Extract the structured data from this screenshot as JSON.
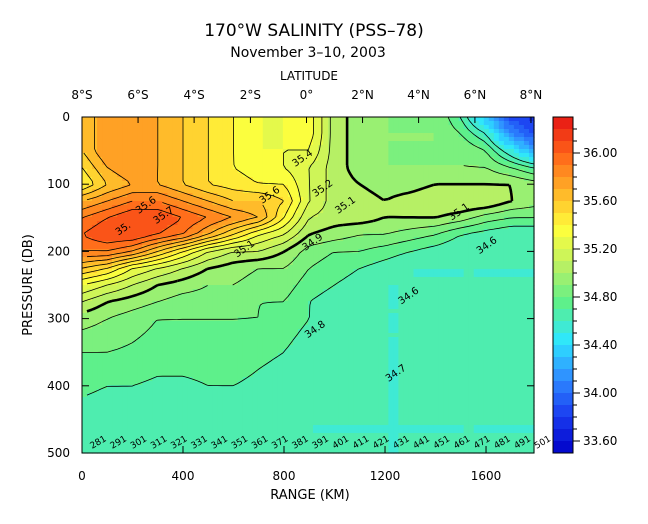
{
  "chart_data": {
    "type": "heatmap",
    "title": "170°W SALINITY (PSS–78)",
    "subtitle": "November 3–10, 2003",
    "top_axis_label": "LATITUDE",
    "xlabel": "RANGE (KM)",
    "ylabel": "PRESSURE (DB)",
    "xlim": [
      0,
      1790
    ],
    "ylim": [
      0,
      500
    ],
    "latitude_ticks": [
      {
        "label": "8°S",
        "km": 0
      },
      {
        "label": "6°S",
        "km": 222
      },
      {
        "label": "4°S",
        "km": 444
      },
      {
        "label": "2°S",
        "km": 667
      },
      {
        "label": "0°",
        "km": 889
      },
      {
        "label": "2°N",
        "km": 1111
      },
      {
        "label": "4°N",
        "km": 1333
      },
      {
        "label": "6°N",
        "km": 1556
      },
      {
        "label": "8°N",
        "km": 1778
      }
    ],
    "range_ticks": [
      "0",
      "400",
      "800",
      "1200",
      "1600"
    ],
    "range_tick_values": [
      0,
      400,
      800,
      1200,
      1600
    ],
    "pressure_ticks": [
      "0",
      "100",
      "200",
      "300",
      "400",
      "500"
    ],
    "pressure_tick_values": [
      0,
      100,
      200,
      300,
      400,
      500
    ],
    "colorbar": {
      "min": 33.5,
      "max": 36.3,
      "step": 0.1,
      "labels": [
        "36.00",
        "35.60",
        "35.20",
        "34.80",
        "34.40",
        "34.00",
        "33.60"
      ],
      "label_values": [
        36.0,
        35.6,
        35.2,
        34.8,
        34.4,
        34.0,
        33.6
      ],
      "colors": [
        "#0000c8",
        "#1a3cf0",
        "#2f8cff",
        "#2ee6ff",
        "#5cf08c",
        "#b8f064",
        "#ffff3c",
        "#ffb428",
        "#ff6419",
        "#e61414"
      ]
    },
    "contour_labels": [
      "35.4",
      "35.2",
      "35.1",
      "35.1",
      "35.6",
      "35.6",
      "35.7",
      "35.",
      "35.1",
      "34.9",
      "34.6",
      "34.6",
      "34.8",
      "34.7"
    ],
    "stations": [
      "281",
      "291",
      "301",
      "311",
      "321",
      "331",
      "341",
      "351",
      "361",
      "371",
      "381",
      "391",
      "401",
      "411",
      "421",
      "431",
      "441",
      "451",
      "461",
      "471",
      "481",
      "491",
      "501"
    ],
    "field": {
      "km": [
        0,
        100,
        200,
        300,
        400,
        500,
        600,
        700,
        800,
        900,
        1000,
        1100,
        1200,
        1300,
        1400,
        1500,
        1600,
        1700,
        1790
      ],
      "pressure": [
        0,
        25,
        50,
        75,
        100,
        125,
        150,
        175,
        200,
        225,
        250,
        275,
        300,
        350,
        400,
        450,
        500
      ],
      "salinity": [
        [
          35.6,
          35.8,
          35.8,
          35.7,
          35.6,
          35.5,
          35.4,
          35.3,
          35.3,
          35.35,
          35.05,
          34.95,
          34.9,
          34.9,
          34.9,
          34.7,
          34.3,
          33.85,
          33.75
        ],
        [
          35.6,
          35.8,
          35.8,
          35.7,
          35.6,
          35.5,
          35.4,
          35.3,
          35.3,
          35.35,
          35.05,
          34.95,
          34.9,
          34.9,
          34.9,
          34.8,
          34.6,
          34.1,
          33.9
        ],
        [
          35.6,
          35.8,
          35.8,
          35.7,
          35.6,
          35.5,
          35.4,
          35.3,
          35.3,
          35.3,
          35.05,
          34.95,
          34.9,
          34.9,
          34.9,
          34.9,
          34.8,
          34.5,
          34.2
        ],
        [
          35.5,
          35.7,
          35.8,
          35.7,
          35.6,
          35.5,
          35.4,
          35.35,
          35.3,
          35.2,
          35.05,
          34.95,
          34.9,
          34.9,
          34.9,
          34.9,
          34.9,
          34.8,
          34.7
        ],
        [
          35.4,
          35.6,
          35.7,
          35.7,
          35.6,
          35.5,
          35.45,
          35.4,
          35.4,
          35.2,
          35.05,
          35.0,
          34.95,
          34.95,
          35.0,
          35.0,
          35.0,
          35.0,
          34.95
        ],
        [
          35.7,
          35.8,
          35.9,
          35.9,
          35.8,
          35.7,
          35.6,
          35.6,
          35.5,
          35.2,
          35.05,
          35.05,
          35.0,
          35.05,
          35.1,
          35.1,
          35.1,
          35.0,
          34.95
        ],
        [
          35.9,
          36.0,
          36.1,
          36.1,
          36.0,
          35.9,
          35.8,
          35.7,
          35.4,
          35.1,
          35.05,
          35.05,
          35.0,
          35.0,
          35.0,
          34.95,
          34.85,
          34.8,
          34.8
        ],
        [
          36.0,
          36.1,
          36.1,
          36.0,
          35.9,
          35.7,
          35.5,
          35.3,
          35.2,
          35.0,
          34.95,
          34.9,
          34.9,
          34.85,
          34.8,
          34.7,
          34.65,
          34.6,
          34.6
        ],
        [
          35.9,
          35.9,
          35.8,
          35.6,
          35.4,
          35.2,
          35.1,
          35.1,
          35.0,
          34.85,
          34.8,
          34.8,
          34.75,
          34.7,
          34.65,
          34.6,
          34.6,
          34.6,
          34.6
        ],
        [
          35.6,
          35.5,
          35.3,
          35.2,
          35.1,
          35.0,
          34.95,
          34.9,
          34.9,
          34.8,
          34.75,
          34.7,
          34.65,
          34.6,
          34.6,
          34.6,
          34.6,
          34.6,
          34.6
        ],
        [
          35.3,
          35.2,
          35.1,
          35.0,
          34.95,
          34.9,
          34.9,
          34.85,
          34.85,
          34.75,
          34.7,
          34.65,
          34.6,
          34.6,
          34.6,
          34.6,
          34.6,
          34.6,
          34.6
        ],
        [
          35.1,
          35.0,
          34.95,
          34.9,
          34.85,
          34.85,
          34.85,
          34.8,
          34.8,
          34.7,
          34.65,
          34.6,
          34.6,
          34.6,
          34.6,
          34.6,
          34.6,
          34.6,
          34.6
        ],
        [
          34.95,
          34.9,
          34.85,
          34.8,
          34.8,
          34.8,
          34.8,
          34.8,
          34.75,
          34.7,
          34.65,
          34.6,
          34.6,
          34.6,
          34.6,
          34.6,
          34.6,
          34.6,
          34.6
        ],
        [
          34.8,
          34.8,
          34.78,
          34.75,
          34.75,
          34.75,
          34.75,
          34.72,
          34.7,
          34.65,
          34.62,
          34.6,
          34.6,
          34.6,
          34.6,
          34.6,
          34.6,
          34.6,
          34.6
        ],
        [
          34.72,
          34.7,
          34.7,
          34.68,
          34.68,
          34.7,
          34.7,
          34.68,
          34.66,
          34.62,
          34.6,
          34.6,
          34.6,
          34.6,
          34.6,
          34.6,
          34.6,
          34.6,
          34.6
        ],
        [
          34.66,
          34.65,
          34.65,
          34.63,
          34.63,
          34.63,
          34.64,
          34.62,
          34.61,
          34.6,
          34.6,
          34.6,
          34.6,
          34.6,
          34.6,
          34.6,
          34.6,
          34.6,
          34.6
        ],
        [
          34.62,
          34.62,
          34.61,
          34.6,
          34.6,
          34.6,
          34.6,
          34.6,
          34.6,
          34.6,
          34.6,
          34.6,
          34.6,
          34.6,
          34.6,
          34.6,
          34.6,
          34.6,
          34.6
        ]
      ]
    }
  }
}
